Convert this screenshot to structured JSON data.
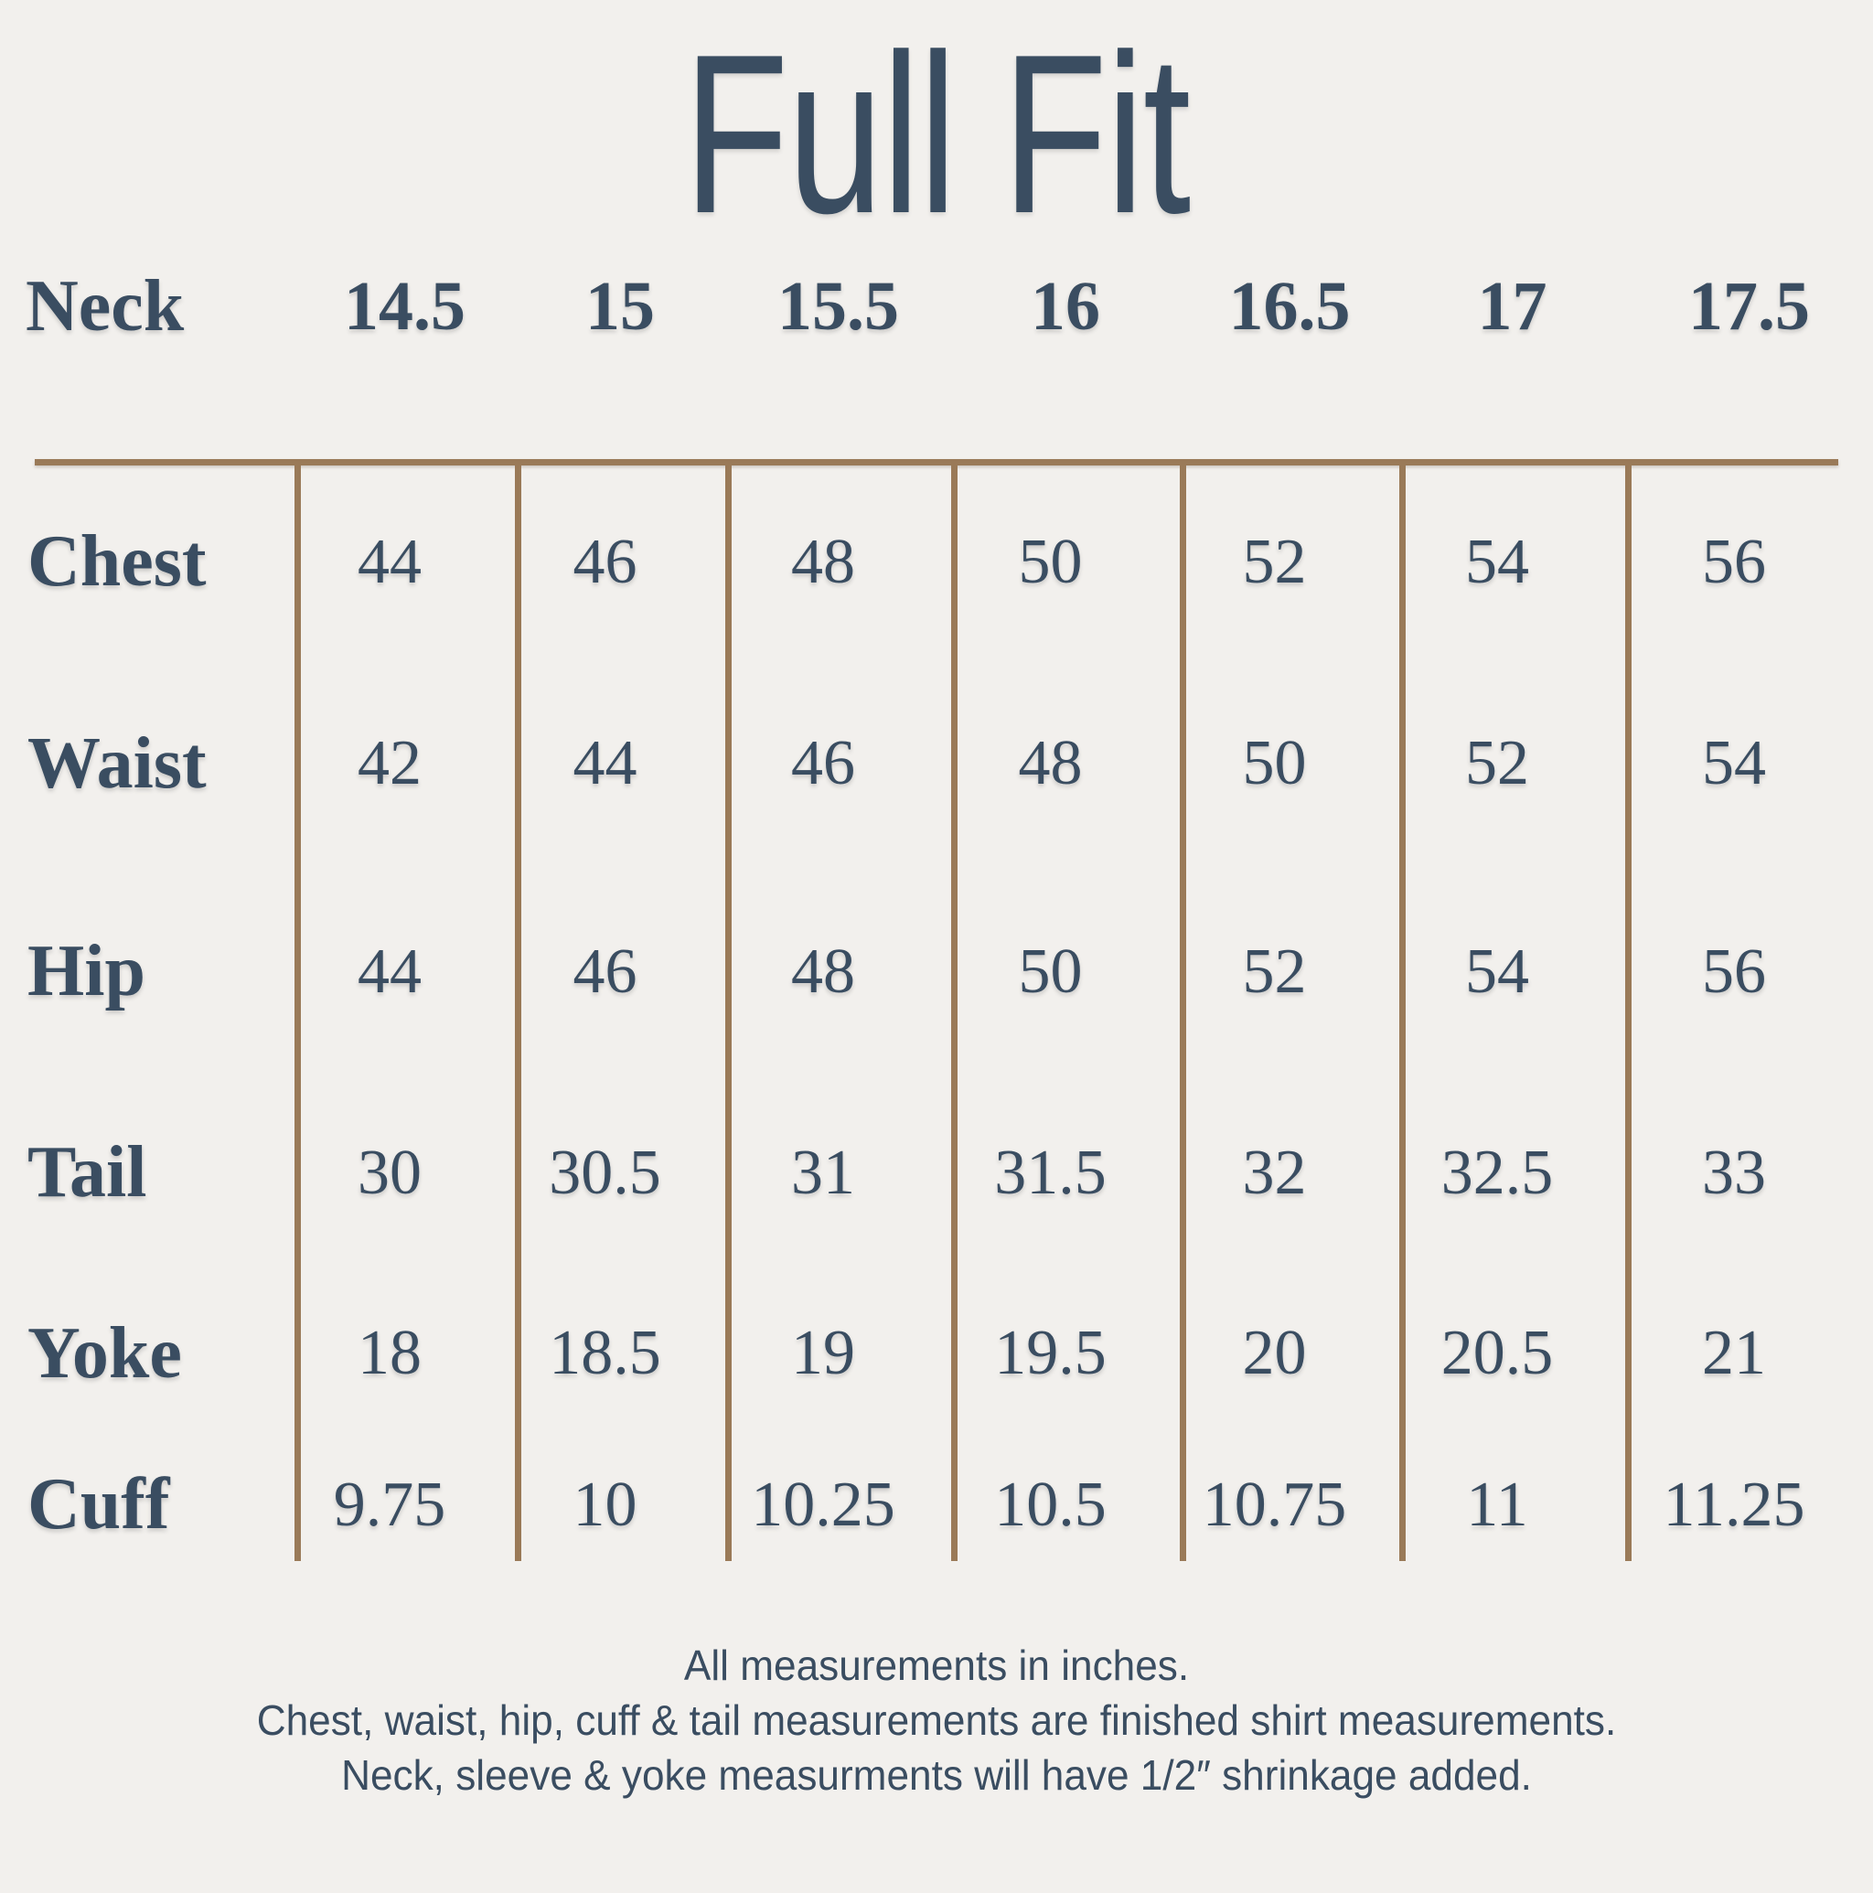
{
  "page": {
    "title": "Full Fit",
    "background_color": "#f2f0ed",
    "text_color": "#3a4d61",
    "line_color": "#9a7a58"
  },
  "table": {
    "header": {
      "label": "Neck",
      "sizes": [
        "14.5",
        "15",
        "15.5",
        "16",
        "16.5",
        "17",
        "17.5"
      ]
    },
    "rows": [
      {
        "label": "Chest",
        "values": [
          "44",
          "46",
          "48",
          "50",
          "52",
          "54",
          "56"
        ]
      },
      {
        "label": "Waist",
        "values": [
          "42",
          "44",
          "46",
          "48",
          "50",
          "52",
          "54"
        ]
      },
      {
        "label": "Hip",
        "values": [
          "44",
          "46",
          "48",
          "50",
          "52",
          "54",
          "56"
        ]
      },
      {
        "label": "Tail",
        "values": [
          "30",
          "30.5",
          "31",
          "31.5",
          "32",
          "32.5",
          "33"
        ]
      },
      {
        "label": "Yoke",
        "values": [
          "18",
          "18.5",
          "19",
          "19.5",
          "20",
          "20.5",
          "21"
        ]
      },
      {
        "label": "Cuff",
        "values": [
          "9.75",
          "10",
          "10.25",
          "10.5",
          "10.75",
          "11",
          "11.25"
        ]
      }
    ]
  },
  "footer": {
    "line1": "All measurements in inches.",
    "line2": "Chest, waist, hip, cuff & tail measurements are finished shirt measurements.",
    "line3": "Neck, sleeve & yoke measurments will have 1/2″ shrinkage added."
  },
  "chart_data": {
    "type": "table",
    "title": "Full Fit",
    "row_header": "Neck",
    "columns": [
      14.5,
      15,
      15.5,
      16,
      16.5,
      17,
      17.5
    ],
    "rows": [
      {
        "name": "Chest",
        "values": [
          44,
          46,
          48,
          50,
          52,
          54,
          56
        ]
      },
      {
        "name": "Waist",
        "values": [
          42,
          44,
          46,
          48,
          50,
          52,
          54
        ]
      },
      {
        "name": "Hip",
        "values": [
          44,
          46,
          48,
          50,
          52,
          54,
          56
        ]
      },
      {
        "name": "Tail",
        "values": [
          30,
          30.5,
          31,
          31.5,
          32,
          32.5,
          33
        ]
      },
      {
        "name": "Yoke",
        "values": [
          18,
          18.5,
          19,
          19.5,
          20,
          20.5,
          21
        ]
      },
      {
        "name": "Cuff",
        "values": [
          9.75,
          10,
          10.25,
          10.5,
          10.75,
          11,
          11.25
        ]
      }
    ],
    "units": "inches",
    "notes": [
      "All measurements in inches.",
      "Chest, waist, hip, cuff & tail measurements are finished shirt measurements.",
      "Neck, sleeve & yoke measurments will have 1/2″ shrinkage added."
    ]
  }
}
